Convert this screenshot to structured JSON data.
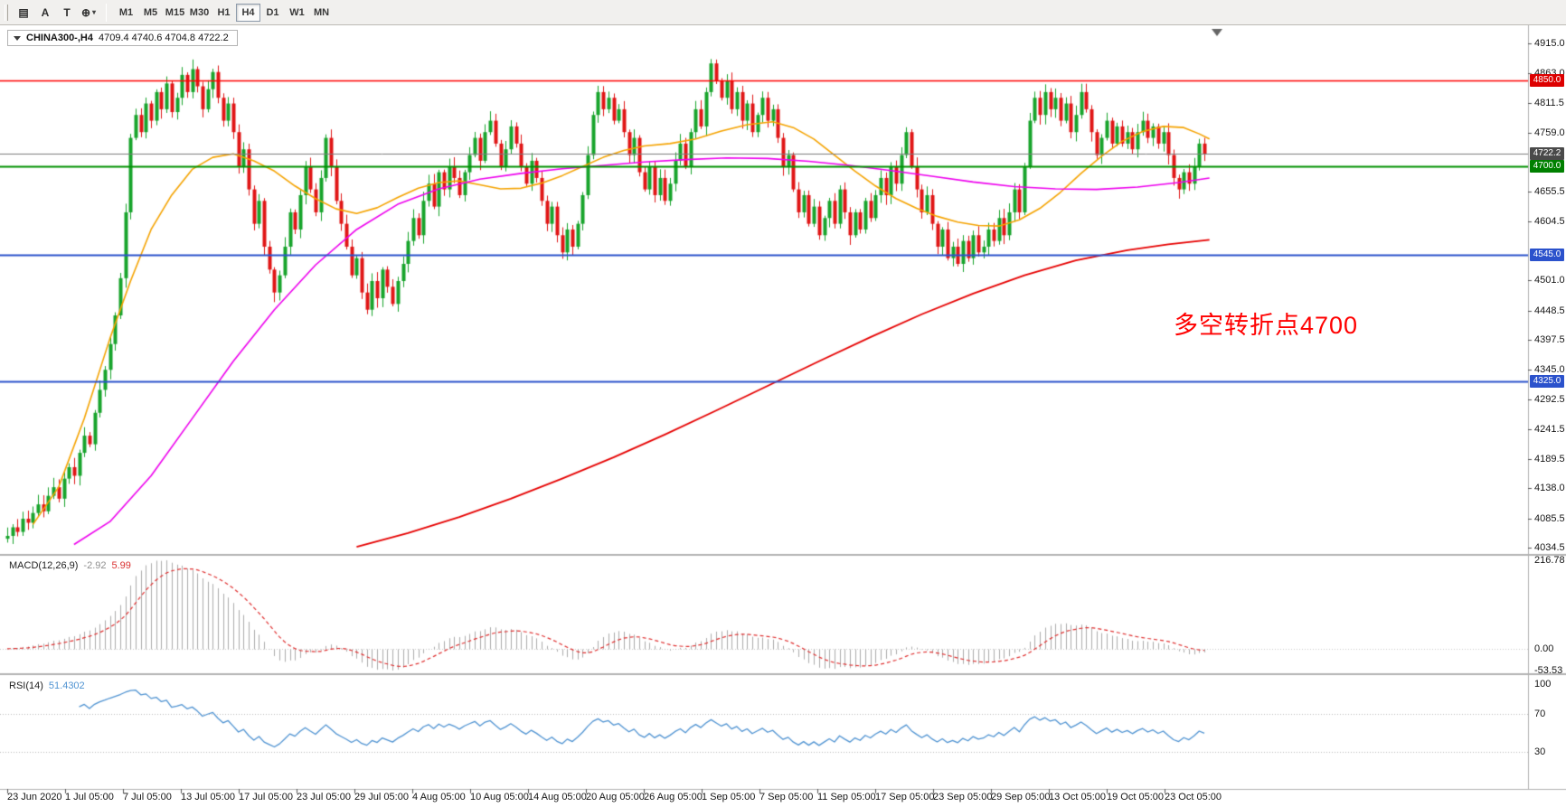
{
  "toolbar": {
    "tools": [
      {
        "id": "chart-grid",
        "label": "▤",
        "dropdown": false
      },
      {
        "id": "arrow-a",
        "label": "A",
        "dropdown": false
      },
      {
        "id": "text-t",
        "label": "T",
        "dropdown": false
      },
      {
        "id": "crosshair",
        "label": "⊕",
        "dropdown": true
      }
    ],
    "timeframes": [
      "M1",
      "M5",
      "M15",
      "M30",
      "H1",
      "H4",
      "D1",
      "W1",
      "MN"
    ],
    "active_timeframe": "H4"
  },
  "header": {
    "symbol": "CHINA300-,H4",
    "ohlc": "4709.4 4740.6 4704.8 4722.2"
  },
  "annotation": {
    "text": "多空转折点4700",
    "color": "#ff0000"
  },
  "panels": {
    "macd": {
      "label": "MACD(12,26,9)",
      "main_value": "-2.92",
      "signal_value": "5.99",
      "axis_labels": [
        "216.78",
        "0.00",
        "-53.53"
      ]
    },
    "rsi": {
      "label": "RSI(14)",
      "value": "51.4302",
      "axis_labels": [
        "100",
        "70",
        "30"
      ]
    }
  },
  "chart_data": {
    "type": "candlestick",
    "symbol": "CHINA300-",
    "timeframe": "H4",
    "y_range": [
      4034.5,
      4915.0
    ],
    "first_open": 4050,
    "closes": [
      4055,
      4070,
      4062,
      4085,
      4078,
      4095,
      4110,
      4098,
      4125,
      4140,
      4120,
      4155,
      4175,
      4160,
      4200,
      4230,
      4215,
      4270,
      4310,
      4345,
      4390,
      4440,
      4505,
      4620,
      4750,
      4790,
      4760,
      4810,
      4780,
      4830,
      4800,
      4845,
      4795,
      4820,
      4860,
      4830,
      4870,
      4840,
      4800,
      4835,
      4865,
      4820,
      4780,
      4810,
      4760,
      4700,
      4730,
      4660,
      4600,
      4640,
      4560,
      4520,
      4480,
      4510,
      4560,
      4620,
      4590,
      4650,
      4700,
      4660,
      4620,
      4680,
      4750,
      4700,
      4640,
      4600,
      4560,
      4510,
      4540,
      4480,
      4450,
      4500,
      4470,
      4520,
      4490,
      4460,
      4500,
      4530,
      4570,
      4610,
      4580,
      4640,
      4670,
      4630,
      4690,
      4660,
      4700,
      4680,
      4650,
      4690,
      4720,
      4750,
      4710,
      4760,
      4780,
      4740,
      4700,
      4730,
      4770,
      4740,
      4700,
      4670,
      4710,
      4680,
      4640,
      4600,
      4630,
      4580,
      4550,
      4590,
      4560,
      4600,
      4650,
      4720,
      4790,
      4830,
      4800,
      4820,
      4780,
      4800,
      4760,
      4720,
      4750,
      4690,
      4660,
      4700,
      4650,
      4680,
      4640,
      4670,
      4710,
      4740,
      4700,
      4760,
      4800,
      4770,
      4830,
      4880,
      4850,
      4820,
      4850,
      4800,
      4830,
      4780,
      4810,
      4760,
      4790,
      4820,
      4780,
      4800,
      4750,
      4700,
      4720,
      4660,
      4620,
      4650,
      4600,
      4630,
      4580,
      4610,
      4640,
      4600,
      4660,
      4620,
      4580,
      4620,
      4590,
      4640,
      4610,
      4650,
      4680,
      4650,
      4700,
      4670,
      4720,
      4760,
      4700,
      4660,
      4620,
      4650,
      4600,
      4560,
      4590,
      4540,
      4560,
      4530,
      4570,
      4540,
      4580,
      4550,
      4560,
      4590,
      4570,
      4610,
      4580,
      4620,
      4660,
      4620,
      4700,
      4780,
      4820,
      4790,
      4830,
      4800,
      4820,
      4780,
      4810,
      4760,
      4790,
      4830,
      4800,
      4760,
      4720,
      4750,
      4780,
      4740,
      4770,
      4740,
      4760,
      4730,
      4760,
      4780,
      4750,
      4770,
      4740,
      4760,
      4720,
      4680,
      4660,
      4690,
      4670,
      4700,
      4740,
      4722.2
    ],
    "up_color": "#18a42c",
    "down_color": "#e01616",
    "time_labels": [
      "23 Jun 2020",
      "1 Jul 05:00",
      "7 Jul 05:00",
      "13 Jul 05:00",
      "17 Jul 05:00",
      "23 Jul 05:00",
      "29 Jul 05:00",
      "4 Aug 05:00",
      "10 Aug 05:00",
      "14 Aug 05:00",
      "20 Aug 05:00",
      "26 Aug 05:00",
      "1 Sep 05:00",
      "7 Sep 05:00",
      "11 Sep 05:00",
      "17 Sep 05:00",
      "23 Sep 05:00",
      "29 Sep 05:00",
      "13 Oct 05:00",
      "19 Oct 05:00",
      "23 Oct 05:00"
    ],
    "price_ticks": [
      4915.0,
      4863.0,
      4811.5,
      4759.0,
      4655.5,
      4604.5,
      4501.0,
      4448.5,
      4397.5,
      4345.0,
      4292.5,
      4241.5,
      4189.5,
      4138.0,
      4085.5,
      4034.5
    ],
    "hlines": [
      {
        "price": 4850.0,
        "color": "#ff0000",
        "width": 1.5,
        "badge": "4850.0",
        "badge_color": "#dd0000"
      },
      {
        "price": 4722.2,
        "color": "#7d7d7d",
        "width": 1,
        "badge": "4722.2",
        "badge_color": "#4a4a4a"
      },
      {
        "price": 4700.0,
        "color": "#009100",
        "width": 2,
        "badge": "4700.0",
        "badge_color": "#008000"
      },
      {
        "price": 4545.0,
        "color": "#2b52cc",
        "width": 2,
        "badge": "4545.0",
        "badge_color": "#2b52cc"
      },
      {
        "price": 4325.0,
        "color": "#2b52cc",
        "width": 2,
        "badge": "4325.0",
        "badge_color": "#2b52cc"
      }
    ],
    "moving_averages": [
      {
        "name": "ma-orange",
        "color": "#f5a300",
        "width": 1.6,
        "points": [
          [
            5,
            4075
          ],
          [
            10,
            4140
          ],
          [
            15,
            4260
          ],
          [
            20,
            4400
          ],
          [
            24,
            4500
          ],
          [
            28,
            4590
          ],
          [
            32,
            4650
          ],
          [
            36,
            4695
          ],
          [
            40,
            4716
          ],
          [
            44,
            4722
          ],
          [
            48,
            4710
          ],
          [
            52,
            4692
          ],
          [
            56,
            4666
          ],
          [
            60,
            4644
          ],
          [
            64,
            4626
          ],
          [
            68,
            4618
          ],
          [
            72,
            4628
          ],
          [
            76,
            4646
          ],
          [
            80,
            4662
          ],
          [
            84,
            4672
          ],
          [
            88,
            4675
          ],
          [
            92,
            4668
          ],
          [
            96,
            4661
          ],
          [
            100,
            4662
          ],
          [
            104,
            4671
          ],
          [
            108,
            4684
          ],
          [
            112,
            4700
          ],
          [
            116,
            4716
          ],
          [
            120,
            4728
          ],
          [
            124,
            4736
          ],
          [
            129,
            4740
          ],
          [
            134,
            4748
          ],
          [
            139,
            4762
          ],
          [
            144,
            4773
          ],
          [
            149,
            4778
          ],
          [
            153,
            4768
          ],
          [
            157,
            4748
          ],
          [
            161,
            4720
          ],
          [
            165,
            4692
          ],
          [
            169,
            4666
          ],
          [
            173,
            4644
          ],
          [
            177,
            4627
          ],
          [
            181,
            4613
          ],
          [
            185,
            4603
          ],
          [
            189,
            4597
          ],
          [
            193,
            4596
          ],
          [
            197,
            4607
          ],
          [
            201,
            4627
          ],
          [
            205,
            4655
          ],
          [
            209,
            4688
          ],
          [
            213,
            4718
          ],
          [
            217,
            4744
          ],
          [
            221,
            4761
          ],
          [
            225,
            4770
          ],
          [
            229,
            4768
          ],
          [
            232,
            4757
          ],
          [
            234,
            4748
          ]
        ]
      },
      {
        "name": "ma-magenta",
        "color": "#ee00ee",
        "width": 1.6,
        "points": [
          [
            13,
            4040
          ],
          [
            20,
            4080
          ],
          [
            28,
            4160
          ],
          [
            36,
            4260
          ],
          [
            44,
            4360
          ],
          [
            52,
            4450
          ],
          [
            60,
            4528
          ],
          [
            68,
            4590
          ],
          [
            76,
            4634
          ],
          [
            84,
            4661
          ],
          [
            92,
            4678
          ],
          [
            100,
            4688
          ],
          [
            108,
            4696
          ],
          [
            116,
            4702
          ],
          [
            124,
            4708
          ],
          [
            132,
            4712
          ],
          [
            140,
            4715
          ],
          [
            148,
            4714
          ],
          [
            156,
            4709
          ],
          [
            164,
            4702
          ],
          [
            172,
            4693
          ],
          [
            180,
            4683
          ],
          [
            188,
            4673
          ],
          [
            196,
            4665
          ],
          [
            204,
            4661
          ],
          [
            212,
            4660
          ],
          [
            220,
            4664
          ],
          [
            228,
            4672
          ],
          [
            234,
            4680
          ]
        ]
      },
      {
        "name": "ma-red",
        "color": "#e60000",
        "width": 1.8,
        "points": [
          [
            68,
            4036
          ],
          [
            78,
            4060
          ],
          [
            88,
            4088
          ],
          [
            98,
            4120
          ],
          [
            108,
            4155
          ],
          [
            118,
            4192
          ],
          [
            128,
            4232
          ],
          [
            138,
            4274
          ],
          [
            148,
            4317
          ],
          [
            158,
            4360
          ],
          [
            168,
            4402
          ],
          [
            178,
            4442
          ],
          [
            188,
            4478
          ],
          [
            198,
            4510
          ],
          [
            208,
            4536
          ],
          [
            218,
            4554
          ],
          [
            226,
            4564
          ],
          [
            234,
            4572
          ]
        ]
      }
    ],
    "macd": {
      "params": [
        12,
        26,
        9
      ],
      "axis_max": 216.78,
      "axis_min": -53.53,
      "hist_color": "#ababab",
      "signal_color": "#e03030"
    },
    "rsi": {
      "period": 14,
      "levels": [
        70,
        30
      ],
      "color": "#4f93d2"
    }
  }
}
